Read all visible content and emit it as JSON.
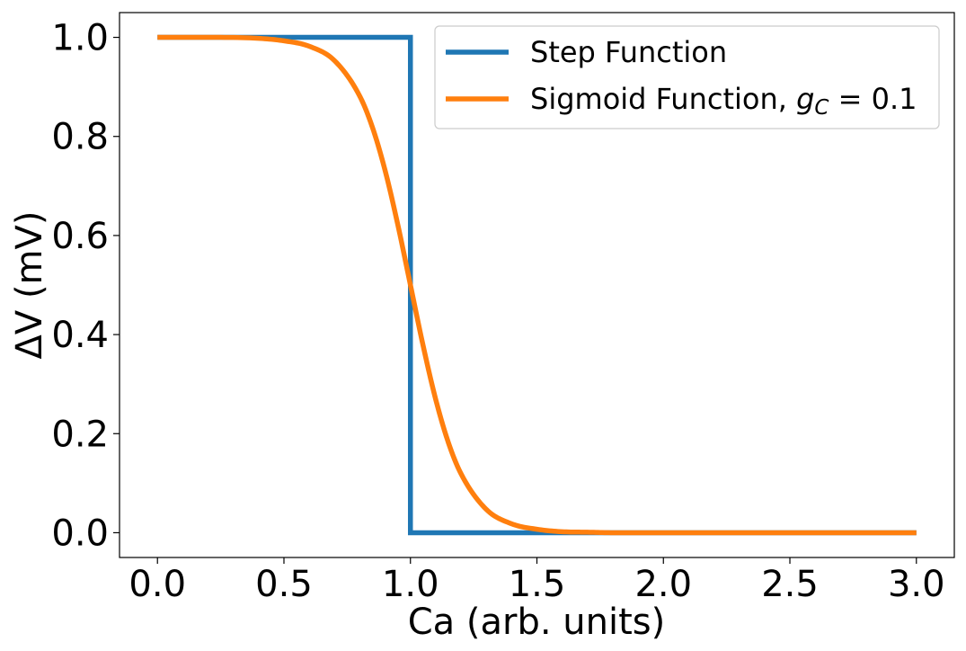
{
  "chart_data": {
    "type": "line",
    "title": "",
    "xlabel": "Ca (arb. units)",
    "ylabel": "ΔV (mV)",
    "xlim": [
      -0.15,
      3.15
    ],
    "ylim": [
      -0.05,
      1.05
    ],
    "xticks": [
      0.0,
      0.5,
      1.0,
      1.5,
      2.0,
      2.5,
      3.0
    ],
    "xtick_labels": [
      "0.0",
      "0.5",
      "1.0",
      "1.5",
      "2.0",
      "2.5",
      "3.0"
    ],
    "yticks": [
      0.0,
      0.2,
      0.4,
      0.6,
      0.8,
      1.0
    ],
    "ytick_labels": [
      "0.0",
      "0.2",
      "0.4",
      "0.6",
      "0.8",
      "1.0"
    ],
    "grid": false,
    "legend_position": "top-right",
    "series": [
      {
        "name": "Step Function",
        "color": "#1f77b4",
        "x": [
          0.0,
          1.0,
          1.0,
          3.0
        ],
        "y": [
          1.0,
          1.0,
          0.0,
          0.0
        ]
      },
      {
        "name": "Sigmoid Function, ",
        "name_math_symbol": "g",
        "name_math_subscript": "C",
        "name_math_tail": " = 0.1",
        "color": "#ff7f0e",
        "x": [
          0.0,
          0.2,
          0.4,
          0.5,
          0.6,
          0.7,
          0.8,
          0.85,
          0.9,
          0.95,
          1.0,
          1.05,
          1.1,
          1.15,
          1.2,
          1.3,
          1.4,
          1.5,
          1.6,
          1.7,
          1.8,
          2.0,
          2.5,
          3.0
        ],
        "y": [
          1.0,
          1.0,
          0.998,
          0.993,
          0.982,
          0.953,
          0.881,
          0.818,
          0.731,
          0.622,
          0.5,
          0.378,
          0.269,
          0.182,
          0.119,
          0.047,
          0.018,
          0.007,
          0.002,
          0.001,
          0.0,
          0.0,
          0.0,
          0.0
        ]
      }
    ]
  }
}
